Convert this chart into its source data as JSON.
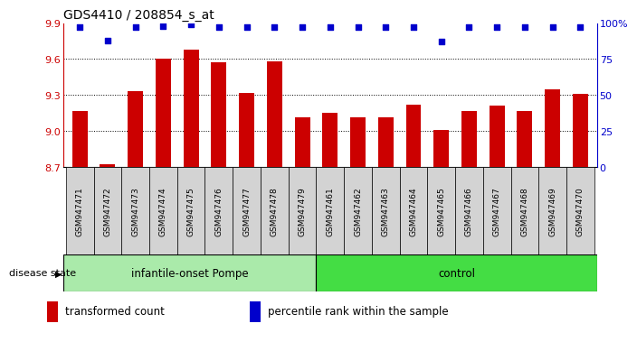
{
  "title": "GDS4410 / 208854_s_at",
  "samples": [
    "GSM947471",
    "GSM947472",
    "GSM947473",
    "GSM947474",
    "GSM947475",
    "GSM947476",
    "GSM947477",
    "GSM947478",
    "GSM947479",
    "GSM947461",
    "GSM947462",
    "GSM947463",
    "GSM947464",
    "GSM947465",
    "GSM947466",
    "GSM947467",
    "GSM947468",
    "GSM947469",
    "GSM947470"
  ],
  "bar_values": [
    9.17,
    8.72,
    9.33,
    9.6,
    9.68,
    9.57,
    9.32,
    9.58,
    9.11,
    9.15,
    9.11,
    9.11,
    9.22,
    9.01,
    9.17,
    9.21,
    9.17,
    9.35,
    9.31
  ],
  "percentile_values": [
    97,
    88,
    97,
    98,
    99,
    97,
    97,
    97,
    97,
    97,
    97,
    97,
    97,
    87,
    97,
    97,
    97,
    97,
    97
  ],
  "bar_color": "#cc0000",
  "dot_color": "#0000cc",
  "ylim_left": [
    8.7,
    9.9
  ],
  "ylim_right": [
    0,
    100
  ],
  "yticks_left": [
    8.7,
    9.0,
    9.3,
    9.6,
    9.9
  ],
  "yticks_right": [
    0,
    25,
    50,
    75,
    100
  ],
  "ytick_labels_right": [
    "0",
    "25",
    "50",
    "75",
    "100%"
  ],
  "dotted_lines": [
    9.0,
    9.3,
    9.6
  ],
  "group1_label": "infantile-onset Pompe",
  "group2_label": "control",
  "group1_count": 9,
  "group2_count": 10,
  "disease_state_label": "disease state",
  "legend_bar_label": "transformed count",
  "legend_dot_label": "percentile rank within the sample",
  "background_color": "#ffffff",
  "axis_label_color_left": "#cc0000",
  "axis_label_color_right": "#0000cc",
  "group1_color": "#aaeaaa",
  "group2_color": "#44dd44",
  "tick_area_color": "#d3d3d3"
}
